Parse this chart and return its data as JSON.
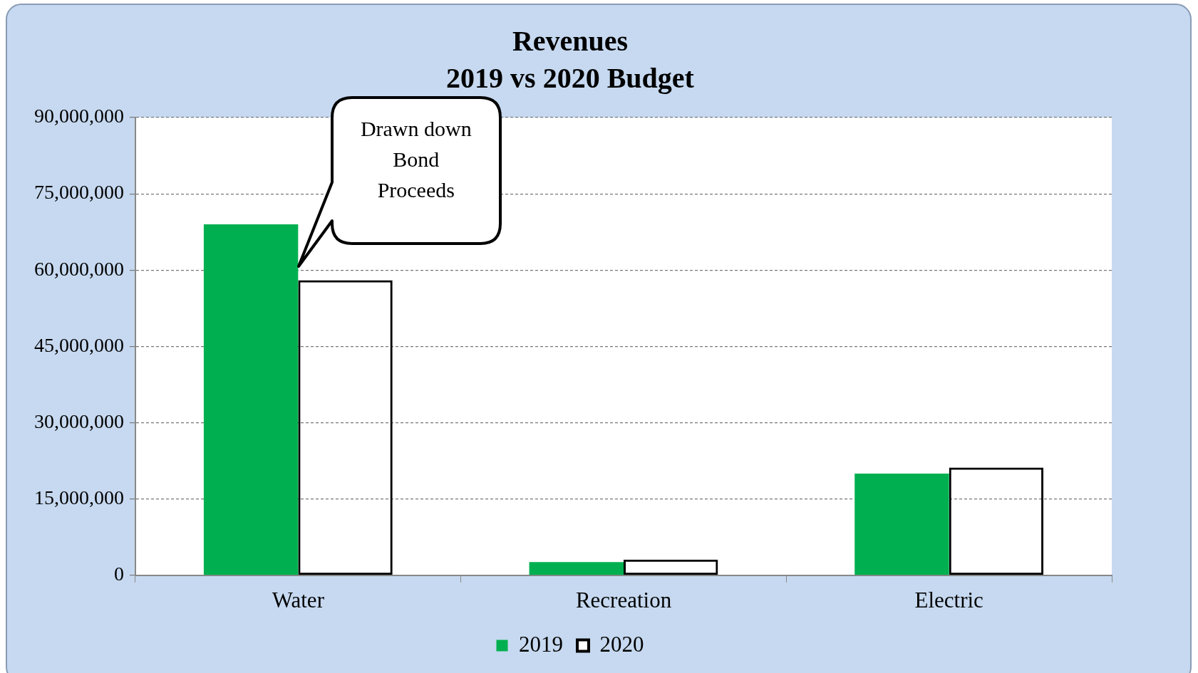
{
  "chart_data": {
    "type": "bar",
    "title": "Revenues",
    "subtitle": "2019 vs 2020 Budget",
    "categories": [
      "Water",
      "Recreation",
      "Electric"
    ],
    "series": [
      {
        "name": "2019",
        "color": "#00b050",
        "values": [
          69000000,
          2600000,
          20000000
        ]
      },
      {
        "name": "2020",
        "color": "#000000",
        "values": [
          58000000,
          3100000,
          21200000
        ]
      }
    ],
    "ylim": [
      0,
      90000000
    ],
    "yticks": [
      {
        "value": 0,
        "label": "0"
      },
      {
        "value": 15000000,
        "label": "15,000,000"
      },
      {
        "value": 30000000,
        "label": "30,000,000"
      },
      {
        "value": 45000000,
        "label": "45,000,000"
      },
      {
        "value": 60000000,
        "label": "60,000,000"
      },
      {
        "value": 75000000,
        "label": "75,000,000"
      },
      {
        "value": 90000000,
        "label": "90,000,000"
      }
    ],
    "grid": "y",
    "legend": "bottom",
    "annotations": [
      "Drawn down\nBond\nProceeds"
    ]
  }
}
